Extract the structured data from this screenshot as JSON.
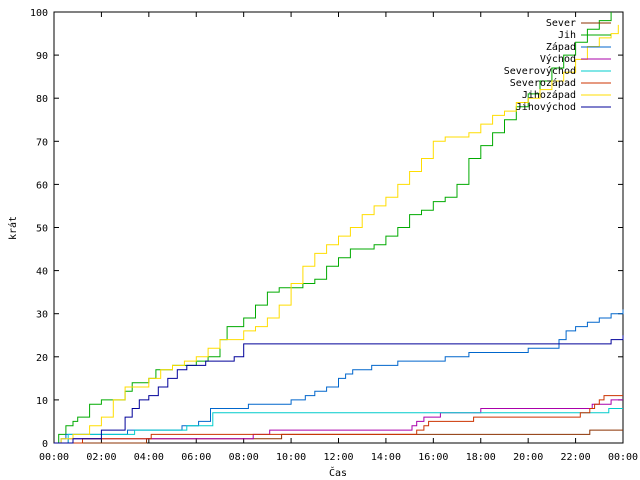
{
  "chart_data": {
    "type": "line",
    "xlabel": "Čas",
    "ylabel": "krát",
    "xlim": [
      0,
      24
    ],
    "ylim": [
      0,
      100
    ],
    "legend_position": "top-right",
    "grid": false,
    "x_ticks": [
      "00:00",
      "02:00",
      "04:00",
      "06:00",
      "08:00",
      "10:00",
      "12:00",
      "14:00",
      "16:00",
      "18:00",
      "20:00",
      "22:00",
      "00:00"
    ],
    "y_ticks": [
      "0",
      "10",
      "20",
      "30",
      "40",
      "50",
      "60",
      "70",
      "80",
      "90",
      "100"
    ],
    "series": [
      {
        "name": "Sever",
        "color": "#8b3000",
        "x": [
          0,
          3.8,
          3.9,
          9.5,
          9.6,
          22.5,
          22.6,
          24
        ],
        "y": [
          0,
          0,
          1,
          1,
          2,
          2,
          3,
          3
        ]
      },
      {
        "name": "Jih",
        "color": "#00aa00",
        "x": [
          0,
          0.2,
          0.5,
          0.8,
          1.0,
          1.5,
          2.0,
          2.5,
          3.0,
          3.3,
          4.0,
          4.3,
          5.0,
          5.5,
          6.0,
          6.5,
          7.0,
          7.3,
          8.0,
          8.5,
          9.0,
          9.5,
          10.0,
          10.5,
          11.0,
          11.5,
          12.0,
          12.5,
          13.0,
          13.5,
          14.0,
          14.5,
          15.0,
          15.5,
          16.0,
          16.5,
          17.0,
          17.5,
          18.0,
          18.5,
          19.0,
          19.5,
          20.0,
          20.5,
          21.0,
          21.5,
          22.0,
          22.5,
          23.0,
          23.5
        ],
        "y": [
          0,
          2,
          4,
          5,
          6,
          9,
          10,
          10,
          12,
          14,
          15,
          17,
          18,
          18,
          19,
          20,
          24,
          27,
          29,
          32,
          35,
          36,
          36,
          37,
          38,
          41,
          43,
          45,
          45,
          46,
          48,
          50,
          53,
          54,
          56,
          57,
          60,
          66,
          69,
          72,
          75,
          78,
          81,
          84,
          87,
          90,
          93,
          96,
          98,
          100
        ]
      },
      {
        "name": "Západ",
        "color": "#0066cc",
        "x": [
          0,
          0.3,
          0.5,
          3.0,
          3.1,
          5.2,
          5.4,
          5.9,
          6.1,
          6.4,
          6.6,
          8.0,
          8.2,
          9.5,
          10.0,
          10.6,
          11.0,
          11.5,
          12.0,
          12.3,
          12.6,
          13.0,
          13.4,
          14.0,
          14.5,
          16.0,
          16.5,
          17.0,
          17.5,
          18.0,
          19.0,
          20.0,
          21.0,
          21.3,
          21.6,
          22.0,
          22.5,
          23.0,
          23.5,
          24.0
        ],
        "y": [
          0,
          1,
          2,
          2,
          3,
          3,
          4,
          4,
          5,
          5,
          8,
          8,
          9,
          9,
          10,
          11,
          12,
          13,
          15,
          16,
          17,
          17,
          18,
          18,
          19,
          19,
          20,
          20,
          21,
          21,
          21,
          22,
          22,
          24,
          26,
          27,
          28,
          29,
          30,
          31
        ]
      },
      {
        "name": "Východ",
        "color": "#aa00aa",
        "x": [
          0,
          0.5,
          0.6,
          8.3,
          8.4,
          9.0,
          9.1,
          15.0,
          15.1,
          15.3,
          15.6,
          16.0,
          16.3,
          16.5,
          17.5,
          18.0,
          22.5,
          22.7,
          23.0,
          23.5,
          24
        ],
        "y": [
          0,
          0,
          1,
          1,
          2,
          2,
          3,
          3,
          4,
          5,
          6,
          6,
          7,
          7,
          7,
          8,
          8,
          9,
          9,
          10,
          10
        ]
      },
      {
        "name": "Severovýchod",
        "color": "#00cccc",
        "x": [
          0,
          0.5,
          0.6,
          3.3,
          3.4,
          5.5,
          5.6,
          6.6,
          6.7,
          23.3,
          23.4,
          24
        ],
        "y": [
          0,
          0,
          2,
          2,
          3,
          3,
          4,
          4,
          7,
          7,
          8,
          8
        ]
      },
      {
        "name": "Severozápad",
        "color": "#cc3300",
        "x": [
          0,
          1.1,
          1.2,
          4.0,
          4.1,
          15.2,
          15.3,
          15.6,
          15.8,
          16.0,
          16.2,
          17.5,
          17.7,
          20.0,
          20.2,
          22.0,
          22.2,
          22.6,
          22.8,
          23.0,
          23.2,
          24
        ],
        "y": [
          0,
          0,
          1,
          1,
          2,
          2,
          3,
          4,
          5,
          5,
          5,
          5,
          6,
          6,
          6,
          6,
          7,
          8,
          9,
          10,
          11,
          11
        ]
      },
      {
        "name": "Jihozápad",
        "color": "#ffdd00",
        "x": [
          0,
          0.3,
          0.8,
          1.5,
          2.0,
          2.5,
          3.0,
          3.5,
          4.0,
          4.5,
          5.0,
          5.5,
          6.0,
          6.5,
          7.0,
          7.5,
          8.0,
          8.5,
          9.0,
          9.5,
          10.0,
          10.5,
          11.0,
          11.5,
          12.0,
          12.5,
          13.0,
          13.5,
          14.0,
          14.5,
          15.0,
          15.5,
          16.0,
          16.5,
          17.0,
          17.5,
          18.0,
          18.5,
          19.0,
          19.5,
          20.0,
          20.5,
          21.0,
          21.5,
          22.0,
          22.5,
          23.0,
          23.5,
          23.8
        ],
        "y": [
          0,
          1,
          2,
          4,
          6,
          10,
          13,
          13,
          15,
          17,
          18,
          19,
          20,
          22,
          24,
          24,
          26,
          27,
          29,
          32,
          37,
          41,
          44,
          46,
          48,
          50,
          53,
          55,
          57,
          60,
          63,
          66,
          70,
          71,
          71,
          72,
          74,
          76,
          77,
          79,
          80,
          82,
          84,
          86,
          89,
          92,
          94,
          95,
          97
        ]
      },
      {
        "name": "Jihovýchod",
        "color": "#000099",
        "x": [
          0,
          0.8,
          1.0,
          2.0,
          2.5,
          3.0,
          3.3,
          3.6,
          4.0,
          4.4,
          4.8,
          5.2,
          5.6,
          6.0,
          6.4,
          6.8,
          7.2,
          7.6,
          8.0,
          8.1,
          23.3,
          23.5,
          24
        ],
        "y": [
          0,
          1,
          1,
          3,
          3,
          6,
          8,
          10,
          11,
          13,
          15,
          17,
          18,
          18,
          19,
          19,
          19,
          20,
          23,
          23,
          23,
          24,
          25
        ]
      }
    ]
  }
}
